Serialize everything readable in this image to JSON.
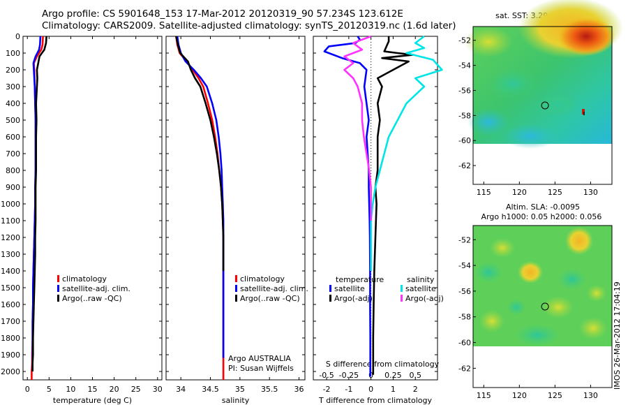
{
  "header": {
    "line1": "Argo profile: CS 5901648_153 17-Mar-2012 20120319_90 57.234S 123.612E",
    "line2": "Climatology: CARS2009. Satellite-adjusted climatology: synTS_20120319.nc (1.6d later)"
  },
  "colors": {
    "climatology": "#ff0000",
    "satellite": "#0000ff",
    "argo": "#000000",
    "salinity_satellite": "#00e5e5",
    "salinity_argo": "#ff33ff"
  },
  "chart_data": [
    {
      "type": "line",
      "xlabel": "temperature (deg C)",
      "xticks": [
        0,
        5,
        10,
        15,
        20,
        25,
        30
      ],
      "xlim": [
        -1,
        31
      ],
      "ylim": [
        2050,
        0
      ],
      "yticks": [
        0,
        100,
        200,
        300,
        400,
        500,
        600,
        700,
        800,
        900,
        1000,
        1100,
        1200,
        1300,
        1400,
        1500,
        1600,
        1700,
        1800,
        1900,
        2000
      ],
      "legend": [
        "climatology",
        "satellite-adj. clim.",
        "Argo(..raw -QC)"
      ],
      "series": [
        {
          "name": "climatology",
          "x": [
            3.6,
            3.5,
            3.2,
            2.2,
            1.5,
            1.6,
            1.7,
            1.8,
            1.9,
            1.9,
            1.9,
            1.9,
            1.8,
            1.8,
            1.7,
            1.6,
            1.5,
            1.4,
            1.3,
            1.3,
            1.2,
            1.2,
            1.1,
            1.1,
            1.0,
            1.0,
            1.0
          ],
          "y": [
            0,
            50,
            80,
            120,
            160,
            200,
            300,
            400,
            500,
            600,
            700,
            800,
            900,
            1000,
            1100,
            1200,
            1300,
            1400,
            1500,
            1600,
            1700,
            1800,
            1900,
            1950,
            2000,
            2040,
            2050
          ]
        },
        {
          "name": "satellite-adj. clim.",
          "x": [
            3.0,
            2.9,
            2.7,
            1.9,
            1.4,
            1.5,
            1.7,
            1.8,
            1.9,
            1.9,
            1.9,
            1.9,
            1.8,
            1.8,
            1.7,
            1.6,
            1.5,
            1.4,
            1.3,
            1.3,
            1.2,
            1.2,
            1.2,
            1.2
          ],
          "y": [
            0,
            50,
            80,
            120,
            160,
            200,
            300,
            400,
            500,
            600,
            700,
            800,
            900,
            1000,
            1100,
            1200,
            1300,
            1400,
            1500,
            1600,
            1700,
            1800,
            1900,
            2000
          ]
        },
        {
          "name": "Argo(..raw -QC)",
          "x": [
            4.4,
            4.3,
            3.9,
            2.8,
            2.5,
            2.2,
            2.3,
            2.2,
            2.0,
            2.1,
            2.0,
            2.0,
            2.0,
            1.9,
            1.9,
            1.9,
            1.8,
            1.8,
            1.7,
            1.6,
            1.5,
            1.4,
            1.3,
            1.3,
            1.2,
            1.2
          ],
          "y": [
            0,
            40,
            80,
            120,
            160,
            200,
            250,
            300,
            400,
            500,
            600,
            700,
            800,
            900,
            1000,
            1100,
            1200,
            1300,
            1400,
            1500,
            1600,
            1700,
            1800,
            1900,
            1950,
            2000
          ]
        }
      ]
    },
    {
      "type": "line",
      "xlabel": "salinity",
      "xticks": [
        34,
        34.5,
        35,
        35.5,
        36
      ],
      "xlim": [
        33.75,
        36.1
      ],
      "legend": [
        "climatology",
        "satellite-adj. clim.",
        "Argo(..raw -QC)"
      ],
      "annotation": [
        "Argo AUSTRALIA",
        "PI: Susan Wijffels"
      ],
      "series": [
        {
          "name": "climatology",
          "x": [
            33.92,
            33.94,
            33.98,
            34.1,
            34.2,
            34.3,
            34.38,
            34.46,
            34.53,
            34.58,
            34.62,
            34.65,
            34.68,
            34.7,
            34.71,
            34.72,
            34.72,
            34.72,
            34.72,
            34.72,
            34.72,
            34.72,
            34.72,
            34.72
          ],
          "y": [
            0,
            50,
            100,
            150,
            200,
            250,
            300,
            400,
            500,
            600,
            700,
            800,
            900,
            1000,
            1100,
            1200,
            1300,
            1400,
            1500,
            1600,
            1700,
            1800,
            1900,
            2050
          ]
        },
        {
          "name": "satellite-adj. clim.",
          "x": [
            33.94,
            33.96,
            34.0,
            34.08,
            34.22,
            34.34,
            34.44,
            34.53,
            34.6,
            34.64,
            34.67,
            34.69,
            34.7,
            34.71,
            34.72,
            34.72,
            34.72,
            34.72,
            34.72,
            34.72,
            34.72,
            34.72,
            34.72
          ],
          "y": [
            0,
            50,
            100,
            150,
            200,
            250,
            300,
            400,
            500,
            600,
            700,
            800,
            900,
            1000,
            1100,
            1200,
            1300,
            1400,
            1500,
            1600,
            1700,
            1800,
            1920
          ]
        },
        {
          "name": "Argo(..raw -QC)",
          "x": [
            33.92,
            33.95,
            33.99,
            34.12,
            34.17,
            34.24,
            34.33,
            34.42,
            34.5,
            34.56,
            34.61,
            34.65,
            34.68,
            34.7,
            34.71,
            34.72,
            34.72,
            34.72
          ],
          "y": [
            0,
            50,
            100,
            150,
            200,
            250,
            300,
            400,
            500,
            600,
            700,
            800,
            900,
            1000,
            1100,
            1200,
            1300,
            1400
          ]
        }
      ]
    },
    {
      "type": "line",
      "xlabel": "T difference from climatology",
      "xticks": [
        -2,
        -1,
        0,
        1,
        2
      ],
      "xlim": [
        -2.6,
        3.0
      ],
      "top_label": "S difference from climatology",
      "top_ticks": [
        -0.5,
        -0.25,
        0,
        0.25,
        0.5
      ],
      "legend_left_title": "temperature",
      "legend_right_title": "salinity",
      "legend_left": [
        "satellite",
        "Argo(-adj)"
      ],
      "legend_right": [
        "satellite",
        "Argo(-adj)"
      ],
      "series": [
        {
          "name": "temperature satellite",
          "x": [
            -0.6,
            -0.5,
            -0.7,
            -1.9,
            -2.1,
            -1.3,
            -0.5,
            -0.2,
            -0.3,
            -0.2,
            -0.1,
            -0.2,
            -0.15,
            -0.1,
            -0.1,
            -0.08,
            -0.06,
            -0.05,
            -0.04,
            -0.04,
            -0.03,
            -0.03,
            -0.03
          ],
          "y": [
            0,
            20,
            40,
            60,
            90,
            130,
            160,
            200,
            300,
            400,
            500,
            600,
            700,
            800,
            900,
            1000,
            1100,
            1200,
            1400,
            1600,
            1800,
            2000,
            2030
          ]
        },
        {
          "name": "temperature Argo(-adj)",
          "x": [
            0.8,
            0.8,
            0.7,
            0.6,
            1.2,
            1.9,
            0.5,
            1.7,
            1.0,
            0.3,
            0.5,
            0.3,
            0.4,
            0.3,
            0.3,
            0.3,
            0.2,
            0.25,
            0.2,
            0.15,
            0.12,
            0.1,
            0.1,
            0.1
          ],
          "y": [
            0,
            30,
            60,
            90,
            100,
            110,
            130,
            150,
            200,
            250,
            300,
            400,
            500,
            600,
            700,
            800,
            900,
            1000,
            1200,
            1400,
            1600,
            1800,
            2000,
            2020
          ]
        },
        {
          "name": "salinity satellite",
          "x": [
            0.6,
            0.5,
            0.6,
            0.4,
            0.7,
            0.8,
            0.5,
            0.6,
            0.4,
            0.3,
            0.2,
            0.15,
            0.1,
            0.05,
            0.02,
            0.0,
            0.0,
            0.0,
            0.0
          ],
          "y": [
            0,
            40,
            70,
            100,
            140,
            200,
            250,
            300,
            400,
            500,
            600,
            700,
            800,
            900,
            1000,
            1100,
            1200,
            1300,
            1400
          ]
        },
        {
          "name": "salinity Argo(-adj)",
          "x": [
            0.0,
            -0.2,
            -0.1,
            -0.3,
            -0.2,
            -0.3,
            -0.2,
            -0.15,
            -0.1,
            -0.1,
            -0.08,
            -0.05,
            -0.02,
            0.0,
            0.0,
            0.0
          ],
          "y": [
            0,
            40,
            80,
            120,
            160,
            200,
            250,
            300,
            400,
            500,
            600,
            700,
            800,
            900,
            1000,
            1100
          ]
        }
      ]
    },
    {
      "type": "heatmap",
      "title": "sat. SST: 3.29 Argo: 3.99",
      "xticks": [
        115,
        120,
        125,
        130
      ],
      "yticks": [
        -52,
        -54,
        -56,
        -58,
        -60,
        -62
      ],
      "xlim": [
        113.5,
        133
      ],
      "ylim": [
        -50.9,
        -63.5
      ],
      "data_ylim": [
        -50.9,
        -60.1
      ],
      "marker": [
        123.6,
        -57.2
      ]
    },
    {
      "type": "heatmap",
      "title": "Altim. SLA: -0.0095",
      "subtitle": "Argo h1000: 0.05 h2000: 0.056",
      "xticks": [
        115,
        120,
        125,
        130
      ],
      "yticks": [
        -52,
        -54,
        -56,
        -58,
        -60,
        -62
      ],
      "xlim": [
        113.5,
        133
      ],
      "ylim": [
        -50.9,
        -63.5
      ],
      "data_ylim": [
        -50.9,
        -60.1
      ],
      "marker": [
        123.6,
        -57.2
      ]
    }
  ],
  "footer_vertical": "IMOS 26-Mar-2012 17:04:19"
}
